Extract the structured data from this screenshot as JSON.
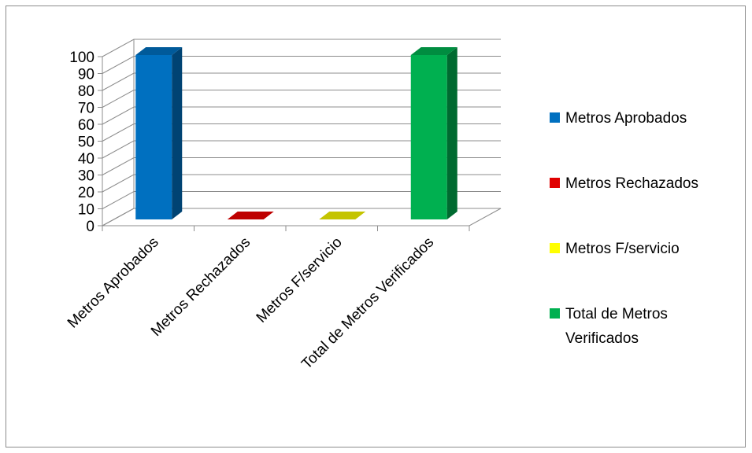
{
  "chart_data": {
    "type": "bar",
    "categories": [
      "Metros  Aprobados",
      "Metros  Rechazados",
      "Metros F/servicio",
      "Total de Metros Verificados"
    ],
    "values": [
      100,
      0,
      0,
      100
    ],
    "colors": [
      "#0070C0",
      "#E00000",
      "#E6E600",
      "#00B050"
    ],
    "title": "",
    "xlabel": "",
    "ylabel": "",
    "ylim": [
      0,
      100
    ],
    "yticks": [
      0,
      10,
      20,
      30,
      40,
      50,
      60,
      70,
      80,
      90,
      100
    ],
    "grid": true,
    "three_d": true,
    "legend": {
      "position": "right",
      "entries": [
        {
          "lines": [
            "Metros  Aprobados"
          ],
          "color": "#0070C0"
        },
        {
          "lines": [
            "Metros  Rechazados"
          ],
          "color": "#E00000"
        },
        {
          "lines": [
            "Metros F/servicio"
          ],
          "color": "#FFFF00"
        },
        {
          "lines": [
            "Total de Metros",
            "Verificados"
          ],
          "color": "#00B050"
        }
      ]
    }
  }
}
